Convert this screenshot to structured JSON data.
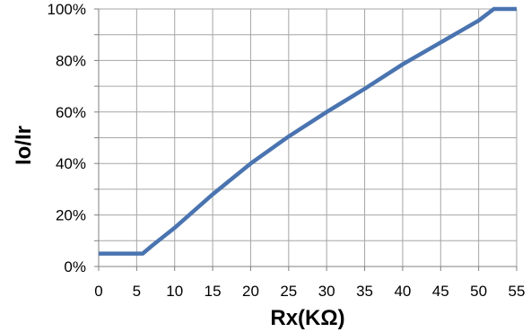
{
  "chart_data": {
    "type": "line",
    "xlabel": "Rx(KΩ)",
    "ylabel": "Io/Ir",
    "xlim": [
      0,
      55
    ],
    "ylim": [
      0,
      100
    ],
    "x_ticks": [
      "0",
      "5",
      "10",
      "15",
      "20",
      "25",
      "30",
      "35",
      "40",
      "45",
      "50",
      "55"
    ],
    "y_ticks": [
      "0%",
      "20%",
      "40%",
      "60%",
      "80%",
      "100%"
    ],
    "grid": true,
    "colors": {
      "series": "#4a74b0"
    },
    "series": [
      {
        "x": [
          0,
          5.8,
          7,
          10,
          15,
          20,
          25,
          30,
          35,
          40,
          45,
          50,
          52,
          55
        ],
        "y": [
          5,
          5,
          8,
          15,
          28,
          40,
          50.5,
          60,
          69,
          78.5,
          87,
          95.5,
          100,
          100
        ]
      }
    ]
  }
}
